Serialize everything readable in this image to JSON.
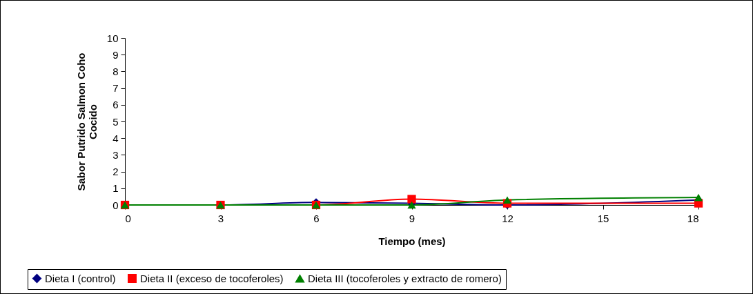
{
  "chart_data": {
    "type": "line",
    "xlabel": "Tiempo (mes)",
    "ylabel": "Sabor Putrido Salmon Coho Cocido",
    "x": [
      0,
      3,
      6,
      9,
      12,
      18
    ],
    "xlim": [
      0,
      18
    ],
    "xticks": [
      0,
      3,
      6,
      9,
      12,
      15,
      18
    ],
    "ylim": [
      0,
      10
    ],
    "yticks": [
      0,
      1,
      2,
      3,
      4,
      5,
      6,
      7,
      8,
      9,
      10
    ],
    "grid": false,
    "legend": "bottom",
    "line_style": "solid",
    "series": [
      {
        "name": "Dieta I (control)",
        "color": "#000080",
        "marker": "diamond",
        "values": [
          0,
          0,
          0.15,
          0.1,
          0,
          0.3
        ]
      },
      {
        "name": "Dieta II (exceso de tocoferoles)",
        "color": "#ff0000",
        "marker": "square",
        "values": [
          0,
          0,
          0,
          0.35,
          0.1,
          0.1
        ]
      },
      {
        "name": "Dieta III (tocoferoles y extracto de romero)",
        "color": "#008000",
        "marker": "triangle",
        "values": [
          0,
          0,
          0,
          0,
          0.3,
          0.45
        ]
      }
    ]
  }
}
